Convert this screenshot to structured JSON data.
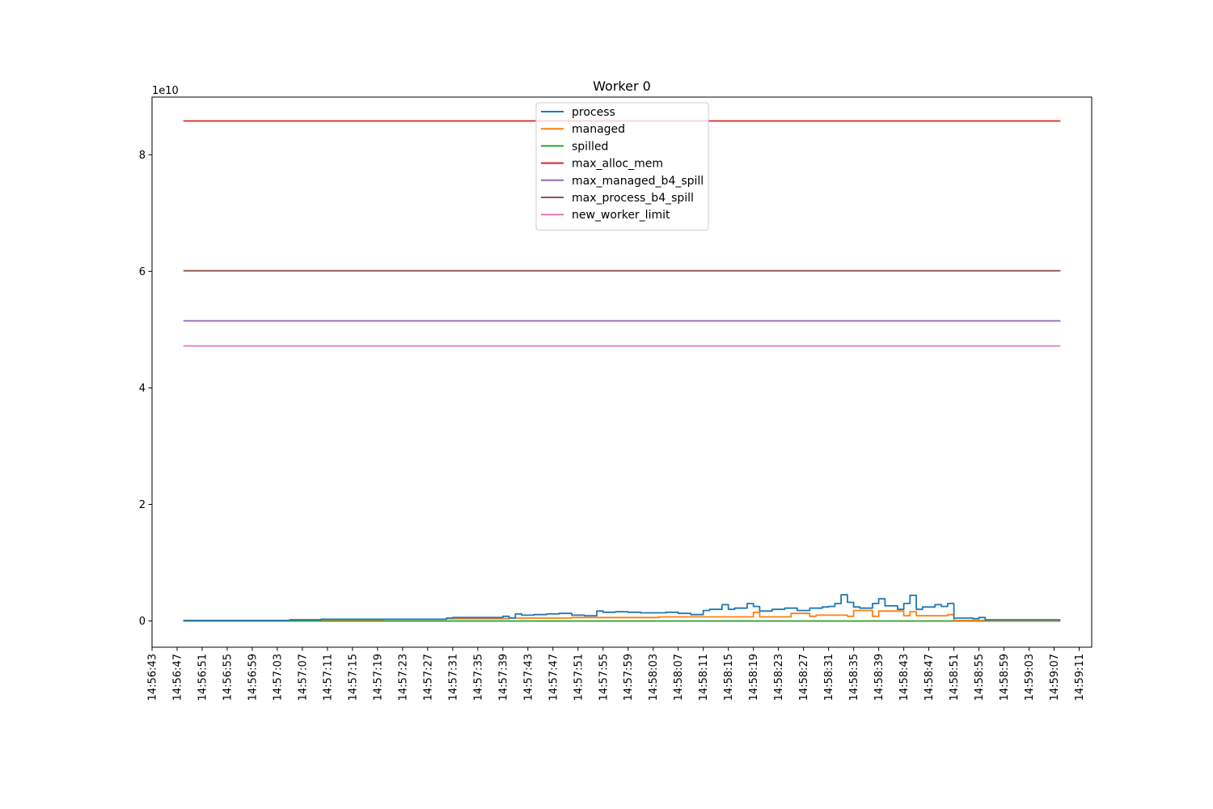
{
  "chart_data": {
    "type": "line",
    "title": "Worker 0",
    "xlabel": "",
    "ylabel": "",
    "y_offset_label": "1e10",
    "y_multiplier": 10000000000,
    "ylim": [
      -0.45,
      8.99
    ],
    "xlim": [
      "14:56:43",
      "14:59:13"
    ],
    "x_ticks": [
      "14:56:43",
      "14:56:47",
      "14:56:51",
      "14:56:55",
      "14:56:59",
      "14:57:03",
      "14:57:07",
      "14:57:11",
      "14:57:15",
      "14:57:19",
      "14:57:23",
      "14:57:27",
      "14:57:31",
      "14:57:35",
      "14:57:39",
      "14:57:43",
      "14:57:47",
      "14:57:51",
      "14:57:55",
      "14:57:59",
      "14:58:03",
      "14:58:07",
      "14:58:11",
      "14:58:15",
      "14:58:19",
      "14:58:23",
      "14:58:27",
      "14:58:31",
      "14:58:35",
      "14:58:39",
      "14:58:43",
      "14:58:47",
      "14:58:51",
      "14:58:55",
      "14:58:59",
      "14:59:03",
      "14:59:07",
      "14:59:11"
    ],
    "y_ticks": [
      0,
      2,
      4,
      6,
      8
    ],
    "y_tick_labels": [
      "0",
      "2",
      "4",
      "6",
      "8"
    ],
    "legend_position": "top-center",
    "grid": false,
    "step": true,
    "series": [
      {
        "name": "process",
        "color": "#1f77b4",
        "x": [
          "14:56:48",
          "14:57:05",
          "14:57:10",
          "14:57:30",
          "14:57:31",
          "14:57:39",
          "14:57:40",
          "14:57:41",
          "14:57:42",
          "14:57:44",
          "14:57:46",
          "14:57:48",
          "14:57:50",
          "14:57:52",
          "14:57:54",
          "14:57:55",
          "14:57:57",
          "14:57:59",
          "14:58:01",
          "14:58:03",
          "14:58:05",
          "14:58:07",
          "14:58:09",
          "14:58:11",
          "14:58:12",
          "14:58:14",
          "14:58:15",
          "14:58:16",
          "14:58:18",
          "14:58:19",
          "14:58:20",
          "14:58:22",
          "14:58:24",
          "14:58:26",
          "14:58:28",
          "14:58:30",
          "14:58:31",
          "14:58:32",
          "14:58:33",
          "14:58:34",
          "14:58:35",
          "14:58:36",
          "14:58:38",
          "14:58:39",
          "14:58:40",
          "14:58:42",
          "14:58:43",
          "14:58:44",
          "14:58:45",
          "14:58:46",
          "14:58:48",
          "14:58:49",
          "14:58:50",
          "14:58:51",
          "14:58:54",
          "14:58:55",
          "14:58:56",
          "14:59:08"
        ],
        "y": [
          0.01,
          0.02,
          0.03,
          0.05,
          0.06,
          0.08,
          0.05,
          0.12,
          0.1,
          0.11,
          0.12,
          0.13,
          0.1,
          0.09,
          0.17,
          0.15,
          0.16,
          0.15,
          0.14,
          0.14,
          0.15,
          0.13,
          0.11,
          0.18,
          0.2,
          0.28,
          0.2,
          0.22,
          0.3,
          0.25,
          0.17,
          0.2,
          0.22,
          0.18,
          0.22,
          0.24,
          0.25,
          0.3,
          0.45,
          0.32,
          0.24,
          0.22,
          0.3,
          0.38,
          0.26,
          0.2,
          0.3,
          0.44,
          0.2,
          0.24,
          0.28,
          0.25,
          0.3,
          0.05,
          0.04,
          0.06,
          0.02,
          0.02
        ]
      },
      {
        "name": "managed",
        "color": "#ff7f0e",
        "x": [
          "14:56:48",
          "14:57:05",
          "14:57:20",
          "14:57:30",
          "14:57:40",
          "14:57:50",
          "14:57:56",
          "14:58:04",
          "14:58:12",
          "14:58:18",
          "14:58:19",
          "14:58:20",
          "14:58:24",
          "14:58:25",
          "14:58:28",
          "14:58:29",
          "14:58:34",
          "14:58:35",
          "14:58:38",
          "14:58:39",
          "14:58:43",
          "14:58:44",
          "14:58:45",
          "14:58:50",
          "14:58:51",
          "14:59:08"
        ],
        "y": [
          0.01,
          0.02,
          0.03,
          0.04,
          0.05,
          0.06,
          0.06,
          0.07,
          0.07,
          0.07,
          0.15,
          0.07,
          0.07,
          0.13,
          0.08,
          0.1,
          0.08,
          0.18,
          0.08,
          0.17,
          0.09,
          0.16,
          0.09,
          0.11,
          0.01,
          0.01
        ]
      },
      {
        "name": "spilled",
        "color": "#2ca02c",
        "x": [
          "14:56:48",
          "14:59:08"
        ],
        "y": [
          0,
          0
        ]
      },
      {
        "name": "max_alloc_mem",
        "color": "#d62728",
        "x": [
          "14:56:48",
          "14:59:08"
        ],
        "y": [
          8.58,
          8.58
        ]
      },
      {
        "name": "max_managed_b4_spill",
        "color": "#9467bd",
        "x": [
          "14:56:48",
          "14:59:08"
        ],
        "y": [
          5.15,
          5.15
        ]
      },
      {
        "name": "max_process_b4_spill",
        "color": "#8c564b",
        "x": [
          "14:56:48",
          "14:59:08"
        ],
        "y": [
          6.01,
          6.01
        ]
      },
      {
        "name": "new_worker_limit",
        "color": "#e377c2",
        "x": [
          "14:56:48",
          "14:59:08"
        ],
        "y": [
          4.72,
          4.72
        ]
      }
    ]
  }
}
